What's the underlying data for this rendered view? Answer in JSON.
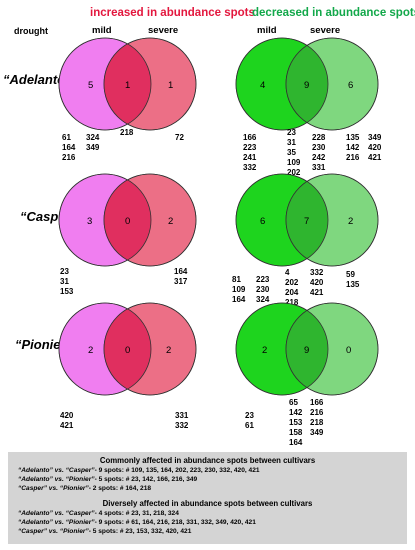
{
  "headers": {
    "increased": "increased in abundance spots",
    "decreased": "decreased in abundance spots",
    "drought": "drought",
    "mild": "mild",
    "severe": "severe"
  },
  "colors": {
    "pink_mild": "#f07ef0",
    "pink_severe": "#ec6f86",
    "pink_overlap": "#e02f5f",
    "green_mild": "#1ed41e",
    "green_severe": "#7fd77f",
    "green_overlap": "#2fb52f",
    "header_red": "#e3173e",
    "header_green": "#12a84a",
    "box_bg": "#d4d4d4"
  },
  "rows": [
    {
      "cultivar": "“Adelanto”",
      "increased": {
        "mild_only": "5",
        "overlap": "1",
        "severe_only": "1",
        "mild_list_a": "61\n164\n216",
        "mild_list_b": "324\n349",
        "overlap_list": "218",
        "severe_list": "72"
      },
      "decreased": {
        "mild_only": "4",
        "overlap": "9",
        "severe_only": "6",
        "mild_list": "166\n223\n241\n332",
        "overlap_list": "23\n31\n35\n109\n202",
        "severe_list_a": "228\n230\n242\n331",
        "severe_list_b": "135\n142\n216",
        "severe_list_c": "349\n420\n421"
      }
    },
    {
      "cultivar": "“Casper”",
      "increased": {
        "mild_only": "3",
        "overlap": "0",
        "severe_only": "2",
        "mild_list": "23\n31\n153",
        "severe_list": "164\n317"
      },
      "decreased": {
        "mild_only": "6",
        "overlap": "7",
        "severe_only": "2",
        "mild_list_a": "81\n109\n164",
        "mild_list_b": "223\n230\n324",
        "overlap_list": "4\n202\n204\n218",
        "severe_list_a": "332\n420\n421",
        "severe_list_b": "59\n135"
      }
    },
    {
      "cultivar": "“Pionier”",
      "increased": {
        "mild_only": "2",
        "overlap": "0",
        "severe_only": "2",
        "mild_list": "420\n421",
        "severe_list": "331\n332"
      },
      "decreased": {
        "mild_only": "2",
        "overlap": "9",
        "severe_only": "0",
        "mild_list": "23\n61",
        "overlap_list": "65\n142\n153\n158\n164",
        "severe_list": "166\n216\n218\n349"
      }
    }
  ],
  "summary": {
    "common_title": "Commonly affected in abundance spots between cultivars",
    "common": [
      {
        "pair": "“Adelanto” vs. “Casper”",
        "text": "- 9 spots: # 109, 135, 164, 202, 223, 230, 332, 420, 421"
      },
      {
        "pair": "“Adelanto” vs. “Pionier”",
        "text": "- 5 spots: # 23, 142, 166, 216, 349"
      },
      {
        "pair": "“Casper” vs. “Pionier”",
        "text": "- 2 spots: # 164, 218"
      }
    ],
    "diverse_title": "Diversely affected in abundance spots between cultivars",
    "diverse": [
      {
        "pair": "“Adelanto” vs. “Casper”",
        "text": "- 4 spots: # 23, 31, 218, 324"
      },
      {
        "pair": "“Adelanto” vs. “Pionier”",
        "text": "- 9 spots: # 61, 164, 216, 218, 331, 332, 349, 420, 421"
      },
      {
        "pair": "“Casper” vs. “Pionier”",
        "text": "- 5 spots: # 23, 153, 332, 420, 421"
      }
    ]
  }
}
